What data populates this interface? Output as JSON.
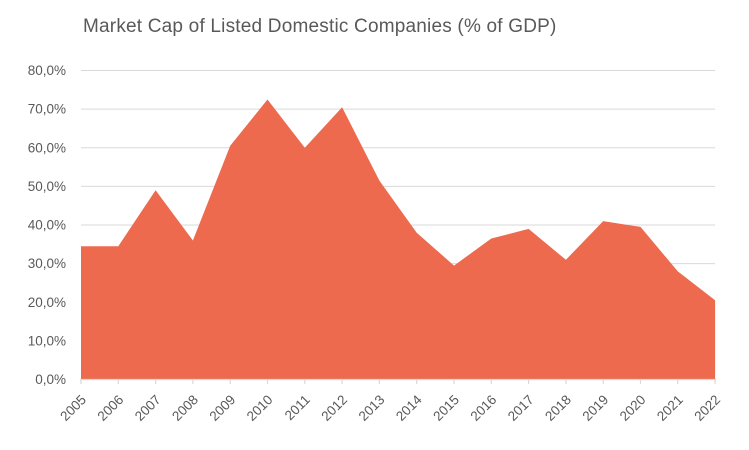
{
  "chart_data": {
    "type": "area",
    "title": "Market Cap of Listed Domestic Companies (% of GDP)",
    "categories": [
      "2005",
      "2006",
      "2007",
      "2008",
      "2009",
      "2010",
      "2011",
      "2012",
      "2013",
      "2014",
      "2015",
      "2016",
      "2017",
      "2018",
      "2019",
      "2020",
      "2021",
      "2022"
    ],
    "values": [
      34.5,
      34.5,
      49,
      36,
      60.5,
      72.5,
      60,
      70.5,
      51.5,
      38,
      29.5,
      36.5,
      39,
      31,
      41,
      39.5,
      28,
      20.5
    ],
    "xlabel": "",
    "ylabel": "",
    "ylim": [
      0,
      80
    ],
    "ytick_step": 10,
    "ytick_labels": [
      "0,0%",
      "10,0%",
      "20,0%",
      "30,0%",
      "40,0%",
      "50,0%",
      "60,0%",
      "70,0%",
      "80,0%"
    ],
    "grid": true,
    "legend": "none",
    "colors": {
      "area_fill": "#ED6A4E",
      "gridline": "#D9D9D9",
      "axis_line": "#D9D9D9",
      "tick_mark": "#D9D9D9",
      "label_text": "#595959",
      "title_text": "#595959",
      "background": "#FFFFFF"
    }
  }
}
